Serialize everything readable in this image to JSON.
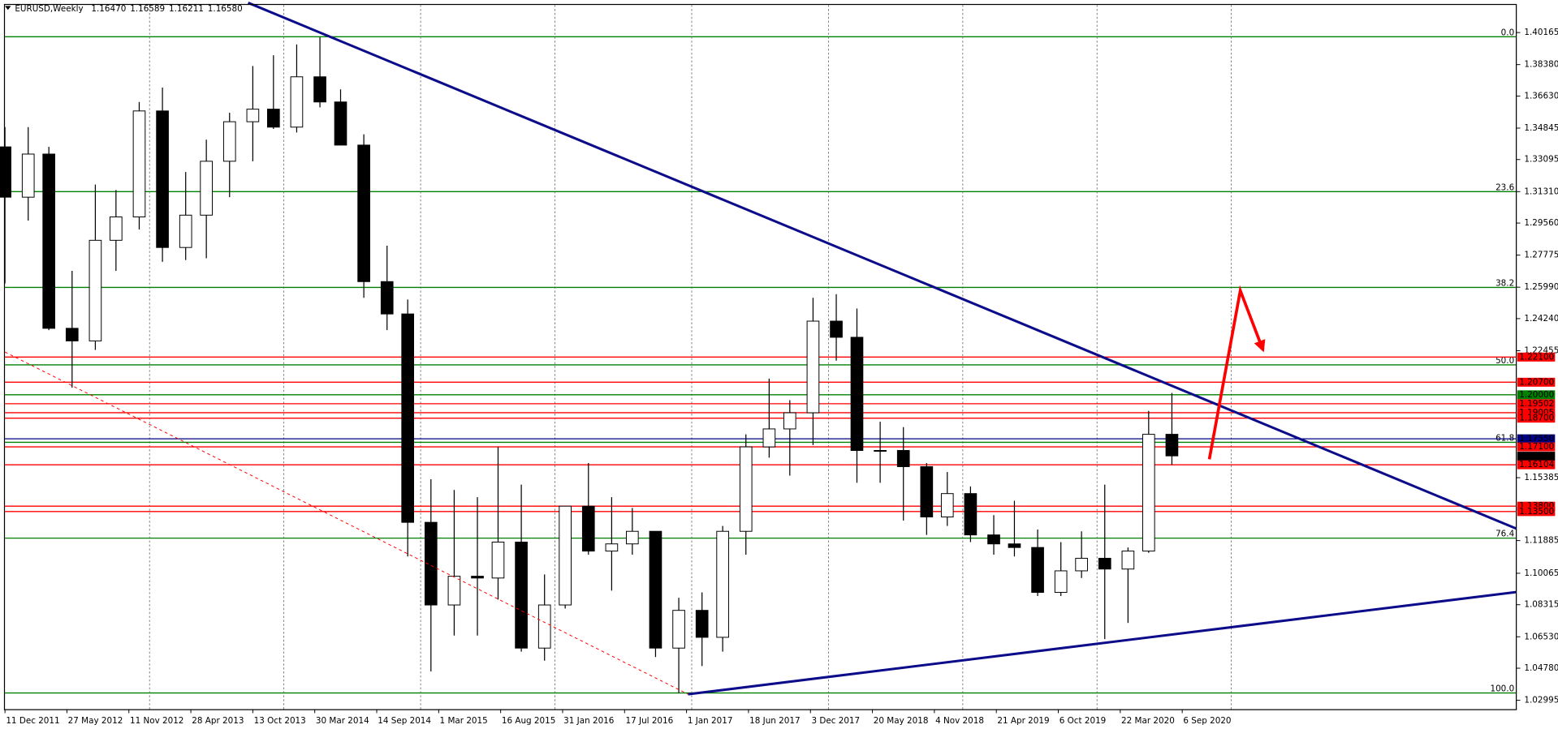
{
  "chart_data": {
    "type": "candlestick",
    "header": {
      "symbol": "EURUSD,Weekly",
      "values": [
        1.1647,
        1.16589,
        1.16211,
        1.1658
      ],
      "value_labels": [
        "1.16470",
        "1.16589",
        "1.16211",
        "1.16580"
      ]
    },
    "xlim": [
      0,
      585.4
    ],
    "ylim": [
      1.025,
      1.417
    ],
    "xticks": [
      {
        "value": 0,
        "label": "11 Dec 2011"
      },
      {
        "value": 24,
        "label": "27 May 2012"
      },
      {
        "value": 48,
        "label": "11 Nov 2012"
      },
      {
        "value": 72,
        "label": "28 Apr 2013"
      },
      {
        "value": 96,
        "label": "13 Oct 2013"
      },
      {
        "value": 120,
        "label": "30 Mar 2014"
      },
      {
        "value": 144,
        "label": "14 Sep 2014"
      },
      {
        "value": 168,
        "label": "1 Mar 2015"
      },
      {
        "value": 192,
        "label": "16 Aug 2015"
      },
      {
        "value": 216,
        "label": "31 Jan 2016"
      },
      {
        "value": 240,
        "label": "17 Jul 2016"
      },
      {
        "value": 264,
        "label": "1 Jan 2017"
      },
      {
        "value": 288,
        "label": "18 Jun 2017"
      },
      {
        "value": 312,
        "label": "3 Dec 2017"
      },
      {
        "value": 336,
        "label": "20 May 2018"
      },
      {
        "value": 360,
        "label": "4 Nov 2018"
      },
      {
        "value": 384,
        "label": "21 Apr 2019"
      },
      {
        "value": 408,
        "label": "6 Oct 2019"
      },
      {
        "value": 432,
        "label": "22 Mar 2020"
      },
      {
        "value": 456,
        "label": "6 Sep 2020"
      }
    ],
    "xgrid": [
      56,
      108,
      161,
      213,
      266,
      319,
      371,
      423,
      475
    ],
    "yticks": [
      1.40165,
      {
        "value": 1.3838,
        "label": "1.38380"
      },
      {
        "value": 1.3663,
        "label": "1.36630"
      },
      1.34845,
      1.33095,
      {
        "value": 1.3131,
        "label": "1.31310"
      },
      {
        "value": 1.2956,
        "label": "1.29560"
      },
      1.27775,
      {
        "value": 1.2599,
        "label": "1.25990"
      },
      {
        "value": 1.2424,
        "label": "1.24240"
      },
      1.22455,
      1.15385,
      1.11885,
      1.10065,
      1.08315,
      {
        "value": 1.0653,
        "label": "1.06530"
      },
      {
        "value": 1.0478,
        "label": "1.04780"
      },
      1.02995
    ],
    "candles": {
      "x": [
        0,
        9,
        17,
        26,
        35,
        43,
        52,
        61,
        70,
        78,
        87,
        96,
        104,
        113,
        122,
        130,
        139,
        148,
        156,
        165,
        174,
        183,
        191,
        200,
        209,
        217,
        226,
        235,
        243,
        252,
        261,
        270,
        278,
        287,
        296,
        304,
        313,
        322,
        330,
        339,
        348,
        357,
        365,
        374,
        383,
        391,
        400,
        409,
        417,
        426,
        435,
        443,
        452
      ],
      "open": [
        1.338,
        1.31,
        1.334,
        1.237,
        1.23,
        1.286,
        1.299,
        1.358,
        1.282,
        1.3,
        1.33,
        1.352,
        1.359,
        1.349,
        1.377,
        1.363,
        1.339,
        1.263,
        1.245,
        1.129,
        1.083,
        1.099,
        1.098,
        1.118,
        1.059,
        1.083,
        1.138,
        1.113,
        1.117,
        1.124,
        1.059,
        1.08,
        1.065,
        1.124,
        1.171,
        1.181,
        1.19,
        1.241,
        1.232,
        1.169,
        1.169,
        1.16,
        1.132,
        1.145,
        1.122,
        1.117,
        1.115,
        1.09,
        1.102,
        1.109,
        1.103,
        1.113,
        1.178
      ],
      "high": [
        1.349,
        1.349,
        1.338,
        1.269,
        1.317,
        1.314,
        1.363,
        1.371,
        1.324,
        1.342,
        1.357,
        1.383,
        1.389,
        1.395,
        1.399,
        1.37,
        1.345,
        1.283,
        1.253,
        1.153,
        1.147,
        1.143,
        1.171,
        1.15,
        1.1,
        1.138,
        1.162,
        1.143,
        1.137,
        1.124,
        1.087,
        1.09,
        1.127,
        1.178,
        1.209,
        1.197,
        1.254,
        1.256,
        1.248,
        1.185,
        1.182,
        1.162,
        1.157,
        1.149,
        1.133,
        1.141,
        1.125,
        1.118,
        1.124,
        1.15,
        1.115,
        1.191,
        1.201
      ],
      "low": [
        1.262,
        1.297,
        1.236,
        1.204,
        1.225,
        1.269,
        1.292,
        1.274,
        1.275,
        1.276,
        1.31,
        1.33,
        1.348,
        1.346,
        1.36,
        1.339,
        1.254,
        1.236,
        1.11,
        1.046,
        1.066,
        1.066,
        1.086,
        1.057,
        1.052,
        1.081,
        1.111,
        1.091,
        1.111,
        1.054,
        1.034,
        1.049,
        1.057,
        1.111,
        1.165,
        1.155,
        1.172,
        1.219,
        1.151,
        1.151,
        1.13,
        1.122,
        1.127,
        1.118,
        1.111,
        1.11,
        1.088,
        1.088,
        1.098,
        1.064,
        1.073,
        1.112,
        1.161
      ],
      "close": [
        1.31,
        1.334,
        1.237,
        1.23,
        1.286,
        1.299,
        1.358,
        1.282,
        1.3,
        1.33,
        1.352,
        1.359,
        1.349,
        1.377,
        1.363,
        1.339,
        1.263,
        1.245,
        1.129,
        1.083,
        1.099,
        1.098,
        1.118,
        1.059,
        1.083,
        1.138,
        1.113,
        1.117,
        1.124,
        1.059,
        1.08,
        1.065,
        1.124,
        1.171,
        1.181,
        1.19,
        1.241,
        1.232,
        1.169,
        1.169,
        1.16,
        1.132,
        1.145,
        1.122,
        1.117,
        1.115,
        1.09,
        1.102,
        1.109,
        1.103,
        1.113,
        1.178,
        1.166
      ]
    },
    "fib": {
      "high": 1.3993,
      "low": 1.034,
      "color": "#008000",
      "levels": [
        {
          "value": 0,
          "label": "0.0"
        },
        23.6,
        38.2,
        {
          "value": 50,
          "label": "50.0"
        },
        61.8,
        76.4,
        {
          "value": 100,
          "label": "100.0"
        }
      ]
    },
    "levels": [
      {
        "value": 1.221,
        "label": "1.22100",
        "color": "#ff0000"
      },
      {
        "value": 1.207,
        "label": "1.20700",
        "color": "#ff0000"
      },
      {
        "value": 1.2,
        "label": "1.20000",
        "color": "#008000"
      },
      {
        "value": 1.19502,
        "label": "1.19502",
        "color": "#ff0000"
      },
      {
        "value": 1.19005,
        "label": "1.19005",
        "color": "#ff0000"
      },
      {
        "value": 1.187,
        "label": "1.18700",
        "color": "#ff0000"
      },
      {
        "value": 1.1755,
        "label": "1.17550",
        "color": "#000080"
      },
      {
        "value": 1.171,
        "label": "1.17100",
        "color": "#ff0000"
      },
      {
        "value": 1.1658,
        "label": "1.16580",
        "color": "#000000",
        "line": false
      },
      {
        "value": 1.16104,
        "label": "1.16104",
        "color": "#ff0000"
      },
      {
        "value": 1.138,
        "label": "1.13800",
        "color": "#ff0000"
      },
      {
        "value": 1.135,
        "label": "1.13500",
        "color": "#ff0000"
      }
    ],
    "lines": [
      {
        "color": "#0c0c8a",
        "width": 2.5,
        "x": [
          94.2,
          585.4
        ],
        "y": [
          1.4182,
          1.1255
        ]
      },
      {
        "color": "#0c0c8a",
        "width": 2.5,
        "x": [
          264.6,
          585.4
        ],
        "y": [
          1.0333,
          1.0902
        ]
      },
      {
        "color": "#ff0000",
        "width": 0.8,
        "dash": true,
        "x": [
          0,
          264.6
        ],
        "y": [
          1.2238,
          1.0333
        ]
      },
      {
        "color": "#ff0000",
        "width": 3,
        "arrow": true,
        "x": [
          466.5,
          478.5,
          487.3
        ],
        "y": [
          1.1641,
          1.258,
          1.2249
        ]
      }
    ]
  }
}
